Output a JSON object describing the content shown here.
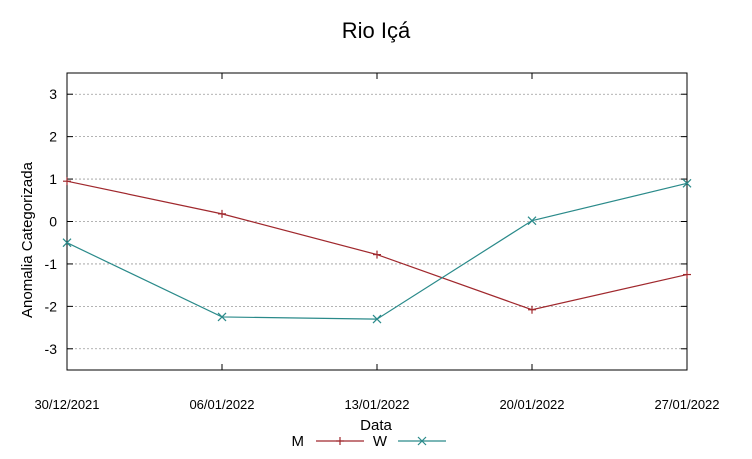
{
  "chart_data": {
    "type": "line",
    "title": "Rio Içá",
    "xlabel": "Data",
    "ylabel": "Anomalia Categorizada",
    "categories": [
      "30/12/2021",
      "06/01/2022",
      "13/01/2022",
      "20/01/2022",
      "27/01/2022"
    ],
    "yticks": [
      "3",
      "2",
      "1",
      "0",
      "-1",
      "-2",
      "-3"
    ],
    "ylim": [
      -3.5,
      3.5
    ],
    "grid": true,
    "legend_position": "bottom",
    "series": [
      {
        "name": "M",
        "color": "#a0282d",
        "marker": "plus",
        "values": [
          0.95,
          0.18,
          -0.78,
          -2.08,
          -1.25
        ]
      },
      {
        "name": "W",
        "color": "#2a8a8a",
        "marker": "cross",
        "values": [
          -0.5,
          -2.25,
          -2.3,
          0.02,
          0.9
        ]
      }
    ]
  }
}
